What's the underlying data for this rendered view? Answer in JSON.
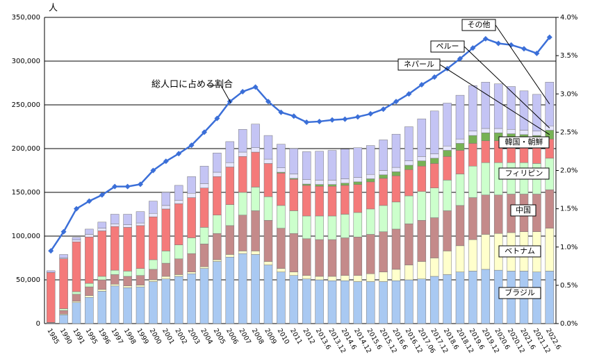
{
  "chart_data": {
    "type": "bar",
    "y_label": "人",
    "categories": [
      "1985",
      "1990",
      "1991",
      "1995",
      "1996",
      "1997",
      "1998",
      "1999",
      "2000",
      "2001",
      "2002",
      "2003",
      "2004",
      "2005",
      "2006",
      "2007",
      "2008",
      "2009",
      "2010",
      "2011",
      "2012",
      "2013.6",
      "2013.12",
      "2014.6",
      "2014.12",
      "2015.6",
      "2015.12",
      "2016.6",
      "2016.12",
      "2017.06",
      "2017.12",
      "2018.6",
      "2018.12",
      "2019.6",
      "2019.12",
      "2020.6",
      "2020.12",
      "2021.6",
      "2021.12",
      "2022.6"
    ],
    "series": [
      {
        "name": "ブラジル",
        "color": "#a9c9f2",
        "values": [
          500,
          10000,
          24000,
          30000,
          37000,
          43000,
          41000,
          42000,
          48000,
          51000,
          54000,
          57000,
          63000,
          71000,
          76000,
          80000,
          79000,
          67000,
          59000,
          55000,
          51000,
          50000,
          49000,
          49000,
          48000,
          48000,
          48000,
          49000,
          50000,
          51000,
          54000,
          56000,
          59000,
          60000,
          62000,
          61000,
          60000,
          60000,
          59000,
          60000
        ]
      },
      {
        "name": "ベトナム",
        "color": "#ffffcc",
        "values": [
          200,
          1000,
          1500,
          2000,
          2000,
          2000,
          2000,
          2000,
          2000,
          3000,
          2000,
          2000,
          2000,
          2000,
          3000,
          3000,
          4000,
          4000,
          4000,
          4000,
          4000,
          4000,
          5000,
          6000,
          7000,
          9000,
          11000,
          13000,
          17000,
          20000,
          21000,
          27000,
          30000,
          36000,
          40000,
          42000,
          44000,
          45000,
          46000,
          49000
        ]
      },
      {
        "name": "中国",
        "color": "#c48a8a",
        "values": [
          500,
          4000,
          8000,
          10000,
          11000,
          11000,
          11000,
          11000,
          12000,
          15000,
          18000,
          21000,
          26000,
          30000,
          33000,
          41000,
          46000,
          47000,
          46000,
          44000,
          42000,
          42000,
          42000,
          43000,
          44000,
          45000,
          46000,
          46000,
          47000,
          47000,
          46000,
          46000,
          46000,
          48000,
          45000,
          44000,
          44000,
          43000,
          43000,
          44000
        ]
      },
      {
        "name": "フィリピン",
        "color": "#ccffcc",
        "values": [
          200,
          2000,
          3000,
          4000,
          4000,
          5000,
          6000,
          8000,
          11000,
          14000,
          16000,
          18000,
          19000,
          21000,
          24000,
          26000,
          27000,
          27000,
          26000,
          26000,
          26000,
          27000,
          27000,
          27000,
          28000,
          29000,
          30000,
          31000,
          32000,
          33000,
          34000,
          35000,
          36000,
          36000,
          37000,
          37000,
          36000,
          36000,
          35000,
          36000
        ]
      },
      {
        "name": "韓国・朝鮮",
        "color": "#f47a7a",
        "values": [
          57000,
          57000,
          57000,
          53000,
          52000,
          50000,
          50000,
          49000,
          49000,
          48000,
          47000,
          46000,
          45000,
          44000,
          43000,
          41000,
          40000,
          38000,
          37000,
          36000,
          35000,
          34000,
          34000,
          33000,
          32000,
          31000,
          31000,
          30000,
          30000,
          29000,
          28000,
          27000,
          27000,
          26000,
          25000,
          25000,
          24000,
          23000,
          23000,
          22000
        ]
      },
      {
        "name": "ネパール",
        "color": "#77b255",
        "values": [
          0,
          0,
          0,
          0,
          0,
          0,
          0,
          0,
          0,
          0,
          0,
          0,
          0,
          0,
          0,
          0,
          0,
          0,
          1000,
          1000,
          1500,
          2000,
          2000,
          2500,
          3000,
          3500,
          4000,
          4500,
          5000,
          6000,
          6000,
          7000,
          8000,
          9000,
          9000,
          9000,
          9000,
          9000,
          9000,
          10000
        ]
      },
      {
        "name": "ペルー",
        "color": "#e6e6ff",
        "values": [
          0,
          1000,
          2000,
          3000,
          3000,
          3000,
          3000,
          3000,
          4000,
          4000,
          4000,
          5000,
          5000,
          5000,
          5000,
          5000,
          5000,
          5000,
          5000,
          5000,
          5000,
          5000,
          5000,
          5000,
          5000,
          5000,
          5000,
          5000,
          5000,
          5000,
          5000,
          5000,
          5000,
          5000,
          5000,
          5000,
          5000,
          5000,
          5000,
          5000
        ]
      },
      {
        "name": "その他",
        "color": "#c4c4f4",
        "values": [
          2000,
          4000,
          3000,
          6000,
          7000,
          11000,
          12000,
          13000,
          14000,
          15000,
          17000,
          19000,
          20000,
          22000,
          24000,
          26000,
          27000,
          27000,
          27000,
          29000,
          32000,
          33000,
          34000,
          34000,
          34000,
          33000,
          35000,
          38000,
          39000,
          43000,
          49000,
          49000,
          50000,
          52000,
          53000,
          51000,
          49000,
          45000,
          42000,
          50000
        ]
      },
      {
        "name": "総人口に占める割合",
        "color": "#3b6fd8",
        "axis": "y2",
        "type": "line",
        "values": [
          0.95,
          1.2,
          1.5,
          1.6,
          1.68,
          1.79,
          1.79,
          1.82,
          2.0,
          2.12,
          2.22,
          2.33,
          2.5,
          2.68,
          2.9,
          3.03,
          3.09,
          2.9,
          2.76,
          2.71,
          2.63,
          2.64,
          2.66,
          2.67,
          2.7,
          2.74,
          2.8,
          2.9,
          3.0,
          3.12,
          3.22,
          3.33,
          3.46,
          3.6,
          3.72,
          3.66,
          3.64,
          3.59,
          3.53,
          3.74
        ]
      }
    ],
    "ylim": [
      0,
      350000
    ],
    "yticks": [
      0,
      {
        "value": 50000,
        "label": "50,000"
      },
      {
        "value": 100000,
        "label": "100,000"
      },
      {
        "value": 150000,
        "label": "150,000"
      },
      {
        "value": 200000,
        "label": "200,000"
      },
      {
        "value": 250000,
        "label": "250,000"
      },
      {
        "value": 300000,
        "label": "300,000"
      },
      {
        "value": 350000,
        "label": "350,000"
      }
    ],
    "y2lim": [
      0,
      4.0
    ],
    "y2ticks": [
      {
        "value": 0,
        "label": "0.0%"
      },
      {
        "value": 0.5,
        "label": "0.5%"
      },
      {
        "value": 1.0,
        "label": "1.0%"
      },
      {
        "value": 1.5,
        "label": "1.5%"
      },
      {
        "value": 2.0,
        "label": "2.0%"
      },
      {
        "value": 2.5,
        "label": "2.5%"
      },
      {
        "value": 3.0,
        "label": "3.0%"
      },
      {
        "value": 3.5,
        "label": "3.5%"
      },
      {
        "value": 4.0,
        "label": "4.0%"
      }
    ],
    "grid": true
  }
}
